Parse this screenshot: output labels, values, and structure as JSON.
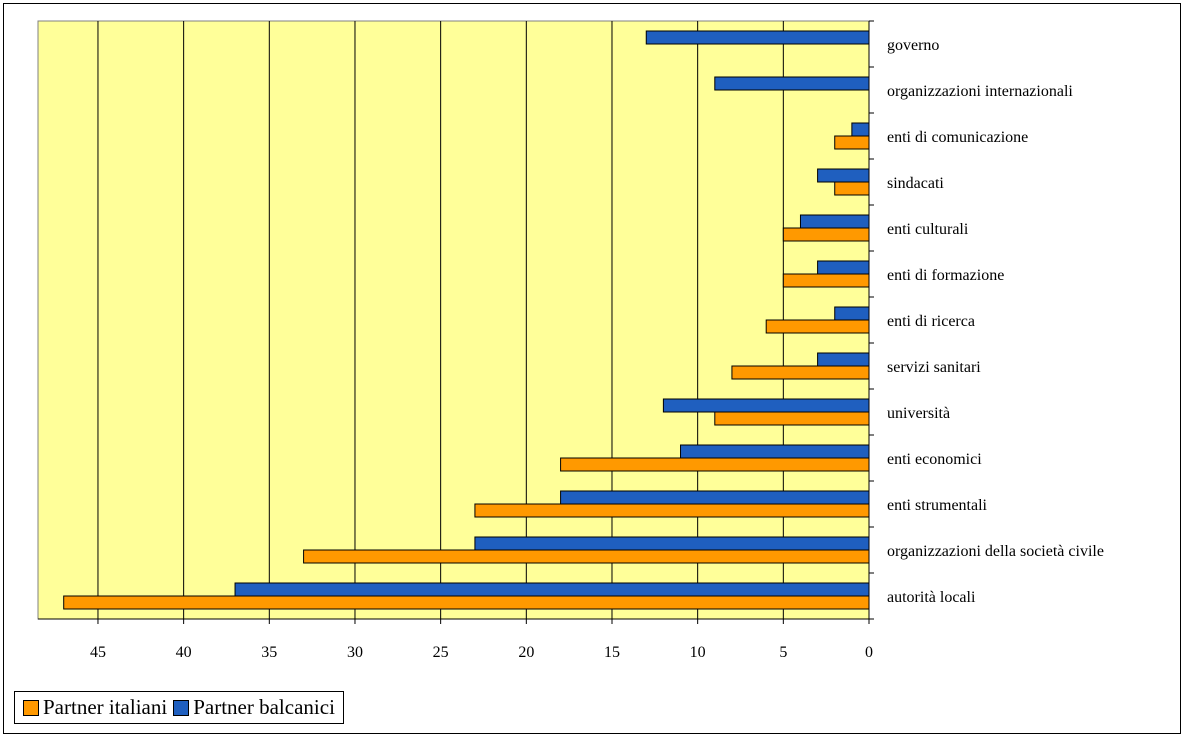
{
  "chart_data": {
    "type": "bar",
    "orientation": "horizontal",
    "x_direction": "reversed",
    "categories": [
      "governo",
      "organizzazioni internazionali",
      "enti di comunicazione",
      "sindacati",
      "enti culturali",
      "enti di formazione",
      "enti di ricerca",
      "servizi sanitari",
      "università",
      "enti economici",
      "enti strumentali",
      "organizzazioni della società civile",
      "autorità locali"
    ],
    "series": [
      {
        "name": "Partner balcanici",
        "color": "#1f5fbf",
        "values": [
          13,
          9,
          1,
          3,
          4,
          3,
          2,
          3,
          12,
          11,
          18,
          23,
          37
        ]
      },
      {
        "name": "Partner italiani",
        "color": "#ff9900",
        "values": [
          0,
          0,
          2,
          2,
          5,
          5,
          6,
          8,
          9,
          18,
          23,
          33,
          47
        ]
      }
    ],
    "xlim": [
      0,
      48.5
    ],
    "x_ticks": [
      "45",
      "40",
      "35",
      "30",
      "25",
      "20",
      "15",
      "10",
      "5",
      "0"
    ],
    "plot_background": "#ffff99",
    "grid": true,
    "legend": {
      "position": "bottom-left",
      "items": [
        {
          "label": "Partner italiani",
          "color": "#ff9900"
        },
        {
          "label": "Partner balcanici",
          "color": "#1f5fbf"
        }
      ]
    }
  }
}
